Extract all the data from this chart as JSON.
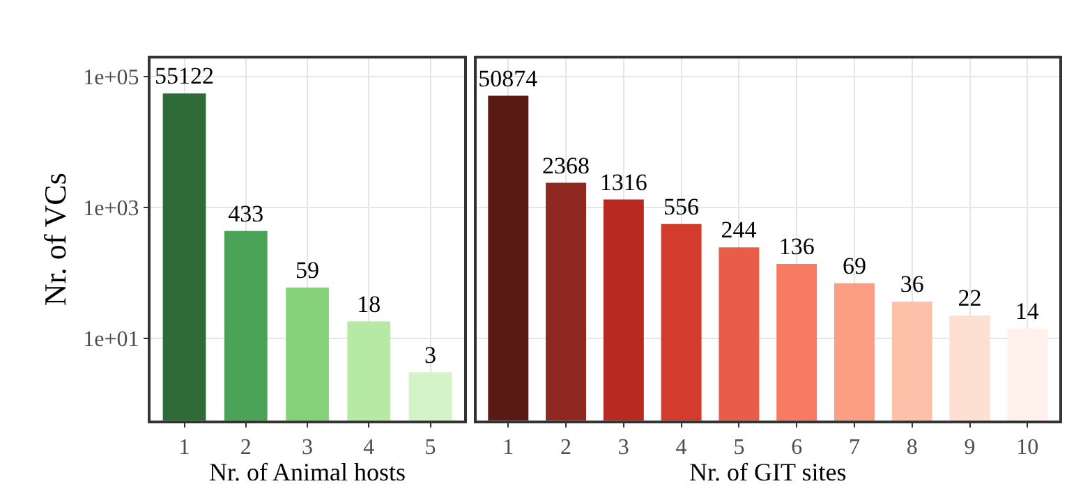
{
  "chart_data": [
    {
      "type": "bar",
      "xlabel": "Nr. of Animal hosts",
      "ylabel": "Nr. of VCs",
      "categories": [
        "1",
        "2",
        "3",
        "4",
        "5"
      ],
      "values": [
        55122,
        433,
        59,
        18,
        3
      ],
      "colors": [
        "#2e6b37",
        "#4aa356",
        "#86d27a",
        "#b5e9a4",
        "#d4f3c8"
      ],
      "data_labels": true,
      "log": "y",
      "ylim": [
        0.55,
        190000
      ],
      "yticks": [
        {
          "value": 10,
          "label": "1e+01"
        },
        {
          "value": 1000,
          "label": "1e+03"
        },
        {
          "value": 100000,
          "label": "1e+05"
        }
      ],
      "grid": true
    },
    {
      "type": "bar",
      "xlabel": "Nr. of GIT sites",
      "categories": [
        "1",
        "2",
        "3",
        "4",
        "5",
        "6",
        "7",
        "8",
        "9",
        "10"
      ],
      "values": [
        50874,
        2368,
        1316,
        556,
        244,
        136,
        69,
        36,
        22,
        14
      ],
      "colors": [
        "#5a1a14",
        "#8f2820",
        "#b72a22",
        "#d33c2c",
        "#e85d48",
        "#f77b62",
        "#fb9e84",
        "#fcc1a9",
        "#fde0d2",
        "#fff1ec"
      ],
      "data_labels": true,
      "log": "y",
      "ylim": [
        0.55,
        190000
      ],
      "yticks": [
        {
          "value": 10,
          "label": null
        },
        {
          "value": 1000,
          "label": null
        },
        {
          "value": 100000,
          "label": null
        }
      ],
      "grid": true,
      "tick_labels": "x"
    }
  ]
}
